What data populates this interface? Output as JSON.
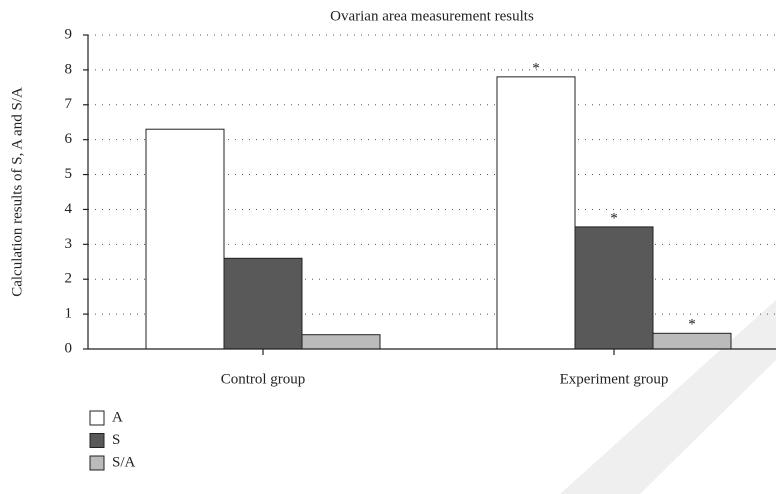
{
  "chart_data": {
    "type": "bar",
    "title": "Ovarian area measurement results",
    "y_label": "Calculation results of S, A and S/A",
    "categories": [
      "Control group",
      "Experiment group"
    ],
    "series": [
      {
        "name": "A",
        "color": "#ffffff",
        "values": [
          6.3,
          7.8
        ]
      },
      {
        "name": "S",
        "color": "#595959",
        "values": [
          2.6,
          3.5
        ]
      },
      {
        "name": "S/A",
        "color": "#bbbbbb",
        "values": [
          0.41,
          0.45
        ]
      }
    ],
    "annotations": [
      {
        "text": "*",
        "series": 0,
        "category": 1
      },
      {
        "text": "*",
        "series": 1,
        "category": 1
      },
      {
        "text": "*",
        "series": 2,
        "category": 1
      }
    ],
    "ylim": [
      0,
      9
    ],
    "yticks": [
      0,
      1,
      2,
      3,
      4,
      5,
      6,
      7,
      8,
      9
    ],
    "grid": true,
    "legend": "bottom-left"
  }
}
